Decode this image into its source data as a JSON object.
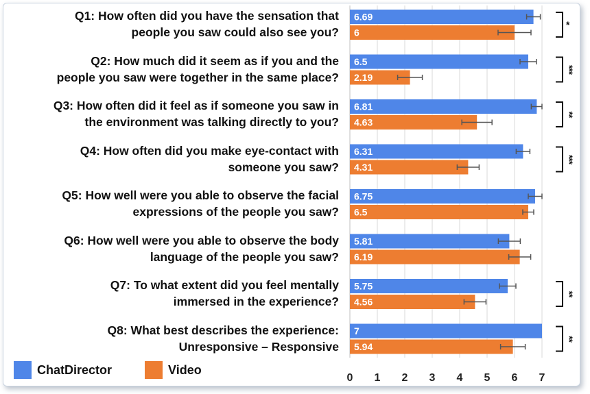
{
  "chart_data": {
    "type": "bar",
    "orientation": "horizontal",
    "title": "",
    "xlabel": "",
    "ylabel": "",
    "xlim": [
      0,
      7
    ],
    "xticks": [
      "0",
      "1",
      "2",
      "3",
      "4",
      "5",
      "6",
      "7"
    ],
    "grid": true,
    "legend_position": "bottom-left",
    "categories": [
      {
        "line1": "Q1: How often did you have the sensation that",
        "line2": "people you saw could also see you?"
      },
      {
        "line1": "Q2: How much did it seem as if you and the",
        "line2": "people you saw were together in the same place?"
      },
      {
        "line1": "Q3: How often did it feel as if someone you saw in",
        "line2": "the environment was talking directly to you?"
      },
      {
        "line1": "Q4: How often did you make eye-contact with",
        "line2": "someone you saw?"
      },
      {
        "line1": "Q5: How well were you able to observe the facial",
        "line2": "expressions of the people you saw?"
      },
      {
        "line1": "Q6: How well were you able to observe the body",
        "line2": "language of the people you saw?"
      },
      {
        "line1": "Q7: To what extent did you feel mentally",
        "line2": "immersed in the experience?"
      },
      {
        "line1": "Q8: What best describes the experience:",
        "line2": "Unresponsive – Responsive"
      }
    ],
    "series": [
      {
        "name": "ChatDirector",
        "color": "#4f86e8",
        "values": [
          6.69,
          6.5,
          6.81,
          6.31,
          6.75,
          5.81,
          5.75,
          7
        ],
        "labels": [
          "6.69",
          "6.5",
          "6.81",
          "6.31",
          "6.75",
          "5.81",
          "5.75",
          "7"
        ],
        "errors": [
          0.25,
          0.3,
          0.2,
          0.25,
          0.25,
          0.4,
          0.3,
          0.0
        ]
      },
      {
        "name": "Video",
        "color": "#ed7d31",
        "values": [
          6,
          2.19,
          4.63,
          4.31,
          6.5,
          6.19,
          4.56,
          5.94
        ],
        "labels": [
          "6",
          "2.19",
          "4.63",
          "4.31",
          "6.5",
          "6.19",
          "4.56",
          "5.94"
        ],
        "errors": [
          0.6,
          0.45,
          0.55,
          0.4,
          0.2,
          0.4,
          0.4,
          0.45
        ]
      }
    ],
    "significance": [
      "*",
      "***",
      "**",
      "***",
      "",
      "",
      "**",
      "**"
    ]
  }
}
